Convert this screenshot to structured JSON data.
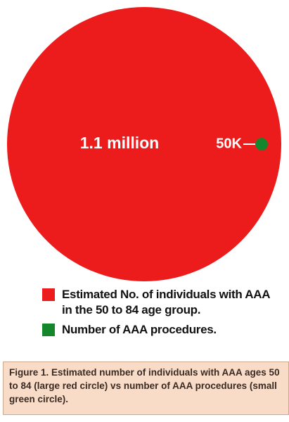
{
  "chart_data": {
    "type": "circles",
    "series": [
      {
        "name": "Estimated No. of individuals with AAA in the 50 to 84 age group.",
        "color": "#ed1c1c",
        "values": [
          1100000
        ],
        "value_labels": [
          "1.1 million"
        ]
      },
      {
        "name": "Number of AAA procedures.",
        "color": "#14872c",
        "values": [
          50000
        ],
        "value_labels": [
          "50K"
        ]
      }
    ],
    "caption": "Figure 1. Estimated number of individuals with AAA ages 50 to 84 (large red circle) vs number of AAA procedures (small green circle)."
  }
}
